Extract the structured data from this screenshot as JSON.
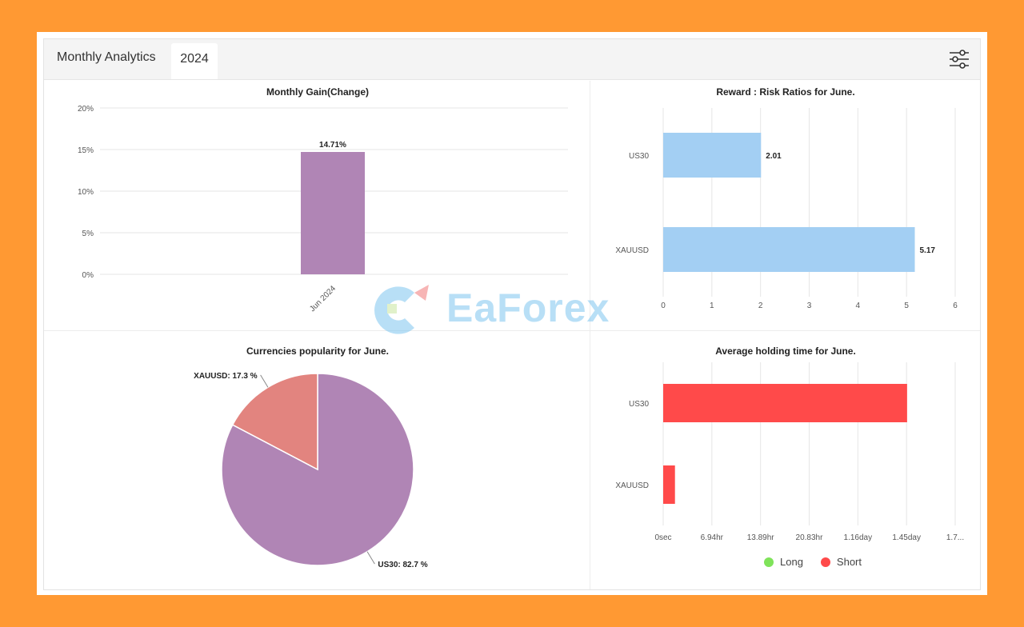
{
  "header": {
    "title": "Monthly Analytics",
    "year_tab": "2024"
  },
  "icons": {
    "filter": "sliders-icon"
  },
  "colors": {
    "background": "#ff9933",
    "gain_bar": "#b085b5",
    "rr_bar": "#a3cff3",
    "short": "#ff4a4a",
    "long": "#7fe35a",
    "xau_slice": "#e2847f",
    "us30_slice": "#b085b5"
  },
  "watermark": {
    "text": "EaForex"
  },
  "chart_data": [
    {
      "id": "monthly_gain",
      "type": "bar",
      "title": "Monthly Gain(Change)",
      "categories": [
        "Jun 2024"
      ],
      "values": [
        14.71
      ],
      "value_labels": [
        "14.71%"
      ],
      "yticks": [
        "20%",
        "15%",
        "10%",
        "5%",
        "0%"
      ],
      "ylim": [
        0,
        20
      ],
      "grid": true
    },
    {
      "id": "reward_risk",
      "type": "bar",
      "orientation": "horizontal",
      "title": "Reward : Risk Ratios for June.",
      "categories": [
        "US30",
        "XAUUSD"
      ],
      "values": [
        2.01,
        5.17
      ],
      "value_labels": [
        "2.01",
        "5.17"
      ],
      "xticks": [
        "0",
        "1",
        "2",
        "3",
        "4",
        "5",
        "6"
      ],
      "xlim": [
        0,
        6
      ],
      "grid": true
    },
    {
      "id": "currency_popularity",
      "type": "pie",
      "title": "Currencies popularity for June.",
      "labels": [
        "US30",
        "XAUUSD"
      ],
      "values": [
        82.7,
        17.3
      ],
      "slice_labels": [
        "US30: 82.7 %",
        "XAUUSD: 17.3 %"
      ]
    },
    {
      "id": "avg_holding",
      "type": "bar",
      "orientation": "horizontal",
      "title": "Average holding time for June.",
      "categories": [
        "US30",
        "XAUUSD"
      ],
      "series": [
        {
          "name": "Long",
          "values": [
            0,
            0
          ]
        },
        {
          "name": "Short",
          "values": [
            1.45,
            0.07
          ]
        }
      ],
      "x_unit": "day",
      "xticks": [
        "0sec",
        "6.94hr",
        "13.89hr",
        "20.83hr",
        "1.16day",
        "1.45day",
        "1.7..."
      ],
      "xlim": [
        0,
        1.736
      ],
      "grid": true,
      "legend_position": "bottom"
    }
  ]
}
